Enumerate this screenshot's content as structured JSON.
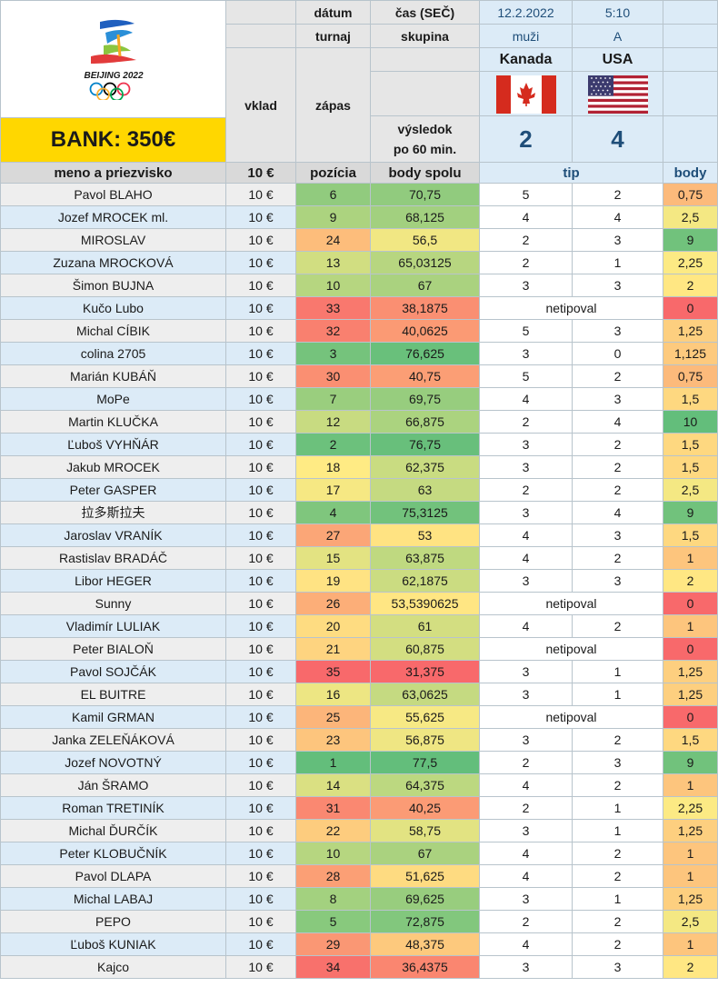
{
  "header": {
    "event_label_line1": "BEIJING 2022",
    "bank_label": "BANK: 350€",
    "datum_label": "dátum",
    "cas_label": "čas (SEČ)",
    "turnaj_label": "turnaj",
    "skupina_label": "skupina",
    "vklad_label": "vklad",
    "zapas_label": "zápas",
    "vysledok_label_1": "výsledok",
    "vysledok_label_2": "po 60 min.",
    "date_value": "12.2.2022",
    "time_value": "5:10",
    "tournament_value": "muži",
    "group_value": "A",
    "team_home": "Kanada",
    "team_away": "USA",
    "score_home": "2",
    "score_away": "4"
  },
  "columns": {
    "name": "meno a priezvisko",
    "stake": "10 €",
    "position": "pozícia",
    "total": "body spolu",
    "tip": "tip",
    "points": "body"
  },
  "colors": {
    "green_dark": "#63be7b",
    "yellow": "#ffeb84",
    "red": "#f8696b",
    "bank_yellow": "#ffd700",
    "accent_blue": "#1f4e79"
  },
  "rows": [
    {
      "name": "Pavol BLAHO",
      "stake": "10 €",
      "position": "6",
      "total": "70,75",
      "tip_home": "5",
      "tip_away": "2",
      "points": "0,75"
    },
    {
      "name": "Jozef MROCEK ml.",
      "stake": "10 €",
      "position": "9",
      "total": "68,125",
      "tip_home": "4",
      "tip_away": "4",
      "points": "2,5"
    },
    {
      "name": "MIROSLAV",
      "stake": "10 €",
      "position": "24",
      "total": "56,5",
      "tip_home": "2",
      "tip_away": "3",
      "points": "9"
    },
    {
      "name": "Zuzana MROCKOVÁ",
      "stake": "10 €",
      "position": "13",
      "total": "65,03125",
      "tip_home": "2",
      "tip_away": "1",
      "points": "2,25"
    },
    {
      "name": "Šimon BUJNA",
      "stake": "10 €",
      "position": "10",
      "total": "67",
      "tip_home": "3",
      "tip_away": "3",
      "points": "2"
    },
    {
      "name": "Kučo Lubo",
      "stake": "10 €",
      "position": "33",
      "total": "38,1875",
      "tip_text": "netipoval",
      "points": "0"
    },
    {
      "name": "Michal CÍBIK",
      "stake": "10 €",
      "position": "32",
      "total": "40,0625",
      "tip_home": "5",
      "tip_away": "3",
      "points": "1,25"
    },
    {
      "name": "colina 2705",
      "stake": "10 €",
      "position": "3",
      "total": "76,625",
      "tip_home": "3",
      "tip_away": "0",
      "points": "1,125"
    },
    {
      "name": "Marián KUBÁŇ",
      "stake": "10 €",
      "position": "30",
      "total": "40,75",
      "tip_home": "5",
      "tip_away": "2",
      "points": "0,75"
    },
    {
      "name": "MoPe",
      "stake": "10 €",
      "position": "7",
      "total": "69,75",
      "tip_home": "4",
      "tip_away": "3",
      "points": "1,5"
    },
    {
      "name": "Martin KLUČKA",
      "stake": "10 €",
      "position": "12",
      "total": "66,875",
      "tip_home": "2",
      "tip_away": "4",
      "points": "10"
    },
    {
      "name": "Ľuboš VYHŇÁR",
      "stake": "10 €",
      "position": "2",
      "total": "76,75",
      "tip_home": "3",
      "tip_away": "2",
      "points": "1,5"
    },
    {
      "name": "Jakub MROCEK",
      "stake": "10 €",
      "position": "18",
      "total": "62,375",
      "tip_home": "3",
      "tip_away": "2",
      "points": "1,5"
    },
    {
      "name": "Peter GASPER",
      "stake": "10 €",
      "position": "17",
      "total": "63",
      "tip_home": "2",
      "tip_away": "2",
      "points": "2,5"
    },
    {
      "name": "拉多斯拉夫",
      "stake": "10 €",
      "position": "4",
      "total": "75,3125",
      "tip_home": "3",
      "tip_away": "4",
      "points": "9"
    },
    {
      "name": "Jaroslav VRANÍK",
      "stake": "10 €",
      "position": "27",
      "total": "53",
      "tip_home": "4",
      "tip_away": "3",
      "points": "1,5"
    },
    {
      "name": "Rastislav BRADÁČ",
      "stake": "10 €",
      "position": "15",
      "total": "63,875",
      "tip_home": "4",
      "tip_away": "2",
      "points": "1"
    },
    {
      "name": "Libor HEGER",
      "stake": "10 €",
      "position": "19",
      "total": "62,1875",
      "tip_home": "3",
      "tip_away": "3",
      "points": "2"
    },
    {
      "name": "Sunny",
      "stake": "10 €",
      "position": "26",
      "total": "53,5390625",
      "tip_text": "netipoval",
      "points": "0"
    },
    {
      "name": "Vladimír LULIAK",
      "stake": "10 €",
      "position": "20",
      "total": "61",
      "tip_home": "4",
      "tip_away": "2",
      "points": "1"
    },
    {
      "name": "Peter BIALOŇ",
      "stake": "10 €",
      "position": "21",
      "total": "60,875",
      "tip_text": "netipoval",
      "points": "0"
    },
    {
      "name": "Pavol SOJČÁK",
      "stake": "10 €",
      "position": "35",
      "total": "31,375",
      "tip_home": "3",
      "tip_away": "1",
      "points": "1,25"
    },
    {
      "name": "EL BUITRE",
      "stake": "10 €",
      "position": "16",
      "total": "63,0625",
      "tip_home": "3",
      "tip_away": "1",
      "points": "1,25"
    },
    {
      "name": "Kamil GRMAN",
      "stake": "10 €",
      "position": "25",
      "total": "55,625",
      "tip_text": "netipoval",
      "points": "0"
    },
    {
      "name": "Janka ZELEŇÁKOVÁ",
      "stake": "10 €",
      "position": "23",
      "total": "56,875",
      "tip_home": "3",
      "tip_away": "2",
      "points": "1,5"
    },
    {
      "name": "Jozef NOVOTNÝ",
      "stake": "10 €",
      "position": "1",
      "total": "77,5",
      "tip_home": "2",
      "tip_away": "3",
      "points": "9"
    },
    {
      "name": "Ján ŠRAMO",
      "stake": "10 €",
      "position": "14",
      "total": "64,375",
      "tip_home": "4",
      "tip_away": "2",
      "points": "1"
    },
    {
      "name": "Roman TRETINÍK",
      "stake": "10 €",
      "position": "31",
      "total": "40,25",
      "tip_home": "2",
      "tip_away": "1",
      "points": "2,25"
    },
    {
      "name": "Michal ĎURČÍK",
      "stake": "10 €",
      "position": "22",
      "total": "58,75",
      "tip_home": "3",
      "tip_away": "1",
      "points": "1,25"
    },
    {
      "name": "Peter KLOBUČNÍK",
      "stake": "10 €",
      "position": "10",
      "total": "67",
      "tip_home": "4",
      "tip_away": "2",
      "points": "1"
    },
    {
      "name": "Pavol DLAPA",
      "stake": "10 €",
      "position": "28",
      "total": "51,625",
      "tip_home": "4",
      "tip_away": "2",
      "points": "1"
    },
    {
      "name": "Michal LABAJ",
      "stake": "10 €",
      "position": "8",
      "total": "69,625",
      "tip_home": "3",
      "tip_away": "1",
      "points": "1,25"
    },
    {
      "name": "PEPO",
      "stake": "10 €",
      "position": "5",
      "total": "72,875",
      "tip_home": "2",
      "tip_away": "2",
      "points": "2,5"
    },
    {
      "name": "Ľuboš KUNIAK",
      "stake": "10 €",
      "position": "29",
      "total": "48,375",
      "tip_home": "4",
      "tip_away": "2",
      "points": "1"
    },
    {
      "name": "Kajco",
      "stake": "10 €",
      "position": "34",
      "total": "36,4375",
      "tip_home": "3",
      "tip_away": "3",
      "points": "2"
    }
  ]
}
